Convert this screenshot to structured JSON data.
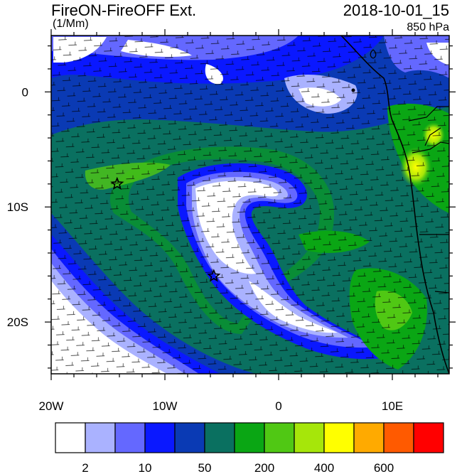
{
  "header": {
    "title": "FireON-FireOFF Ext.",
    "datetime": "2018-10-01_15",
    "units": "(1/Mm)",
    "level": "850 hPa"
  },
  "axes": {
    "lon_labels": [
      "20W",
      "10W",
      "0",
      "10E"
    ],
    "lat_labels": [
      "0",
      "10S",
      "20S"
    ],
    "lon_range": [
      -20,
      15
    ],
    "lat_range": [
      -24.5,
      4.9
    ]
  },
  "colorbar": {
    "colors": [
      "#ffffff",
      "#aab2ff",
      "#6468ff",
      "#0a18ff",
      "#0a3ab4",
      "#0a7060",
      "#0aa614",
      "#50c814",
      "#a6e60a",
      "#ffff00",
      "#ffaa00",
      "#ff5a00",
      "#ff0000"
    ],
    "tick_labels": [
      "2",
      "10",
      "50",
      "200",
      "400",
      "600"
    ]
  },
  "markers": [
    {
      "name": "star",
      "lon": -14.2,
      "lat": -8.0
    },
    {
      "name": "star",
      "lon": -5.7,
      "lat": -16.0
    }
  ],
  "colors": {
    "ocean_base": "#0a7060",
    "coast": "#000000",
    "wind_barb": "#000000"
  }
}
